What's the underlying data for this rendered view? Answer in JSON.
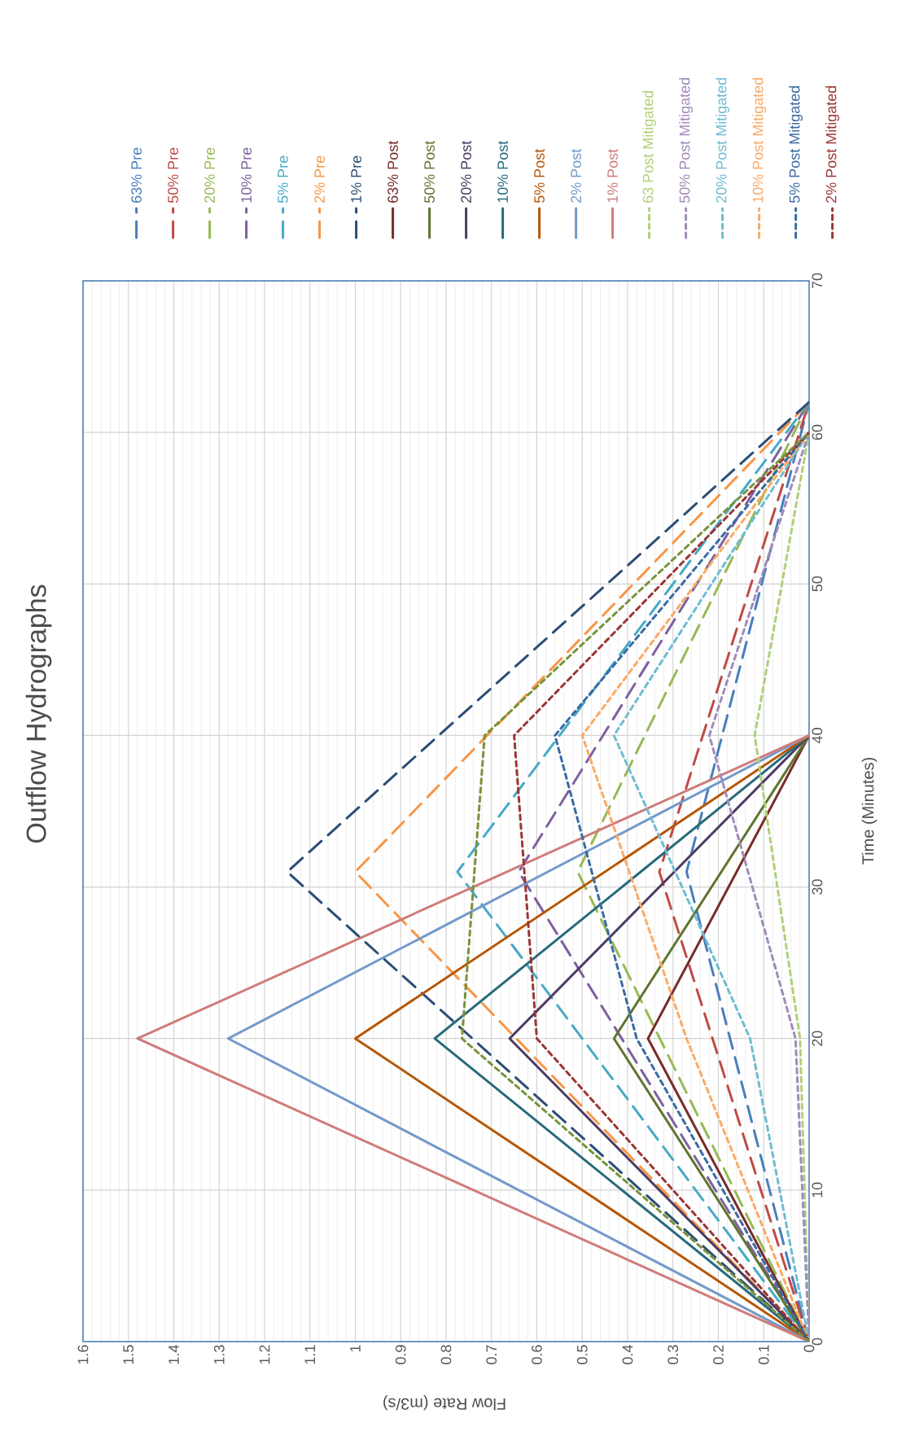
{
  "chart_data": {
    "type": "line",
    "title": "Outflow Hydrographs",
    "xlabel": "Flow Rate (m3/s)",
    "ylabel": "Time (Minutes)",
    "xlim": [
      1.6,
      0
    ],
    "xticks": [
      0,
      0.1,
      0.2,
      0.3,
      0.4,
      0.5,
      0.6,
      0.7,
      0.8,
      0.9,
      1,
      1.1,
      1.2,
      1.3,
      1.4,
      1.5,
      1.6
    ],
    "ylim": [
      0,
      70
    ],
    "yticks": [
      0,
      10,
      20,
      30,
      40,
      50,
      60,
      70
    ],
    "grid": true,
    "legend": "top",
    "marker": "none",
    "series": [
      {
        "name": "63% Pre",
        "color": "#4a7ebb",
        "line_style": "dashed",
        "x": [
          0,
          0.27,
          0
        ],
        "values": [
          0,
          31,
          62
        ]
      },
      {
        "name": "50% Pre",
        "color": "#be4b48",
        "line_style": "dashed",
        "x": [
          0,
          0.33,
          0
        ],
        "values": [
          0,
          31,
          62
        ]
      },
      {
        "name": "20% Pre",
        "color": "#98b954",
        "line_style": "dashed",
        "x": [
          0,
          0.51,
          0
        ],
        "values": [
          0,
          31,
          62
        ]
      },
      {
        "name": "10% Pre",
        "color": "#7d60a0",
        "line_style": "dashed",
        "x": [
          0,
          0.64,
          0
        ],
        "values": [
          0,
          31,
          62
        ]
      },
      {
        "name": "5% Pre",
        "color": "#46aac5",
        "line_style": "dashed",
        "x": [
          0,
          0.775,
          0
        ],
        "values": [
          0,
          31,
          62
        ]
      },
      {
        "name": "2% Pre",
        "color": "#f79646",
        "line_style": "dashed",
        "x": [
          0,
          1.0,
          0
        ],
        "values": [
          0,
          31,
          62
        ]
      },
      {
        "name": "1% Pre",
        "color": "#2c4d75",
        "line_style": "dashed",
        "x": [
          0,
          1.15,
          0
        ],
        "values": [
          0,
          31,
          62
        ]
      },
      {
        "name": "63% Post",
        "color": "#772c2a",
        "line_style": "solid",
        "x": [
          0,
          0.355,
          0
        ],
        "values": [
          0,
          20,
          40
        ]
      },
      {
        "name": "50% Post",
        "color": "#5f7530",
        "line_style": "solid",
        "x": [
          0,
          0.43,
          0
        ],
        "values": [
          0,
          20,
          40
        ]
      },
      {
        "name": "20% Post",
        "color": "#4d3b62",
        "line_style": "solid",
        "x": [
          0,
          0.66,
          0
        ],
        "values": [
          0,
          20,
          40
        ]
      },
      {
        "name": "10% Post",
        "color": "#276a7c",
        "line_style": "solid",
        "x": [
          0,
          0.825,
          0
        ],
        "values": [
          0,
          20,
          40
        ]
      },
      {
        "name": "5% Post",
        "color": "#b65708",
        "line_style": "solid",
        "x": [
          0,
          1.0,
          0
        ],
        "values": [
          0,
          20,
          40
        ]
      },
      {
        "name": "2% Post",
        "color": "#729aca",
        "line_style": "solid",
        "x": [
          0,
          1.28,
          0
        ],
        "values": [
          0,
          20,
          40
        ]
      },
      {
        "name": "1% Post",
        "color": "#d07b7b",
        "line_style": "solid",
        "x": [
          0,
          1.48,
          0
        ],
        "values": [
          0,
          20,
          40
        ]
      },
      {
        "name": "63 Post Mitigated",
        "color": "#afd07a",
        "line_style": "dotted",
        "x": [
          0,
          0.02,
          0.12,
          0
        ],
        "values": [
          0,
          20,
          40,
          60
        ]
      },
      {
        "name": "50% Post Mitigated",
        "color": "#a18bba",
        "line_style": "dotted",
        "x": [
          0,
          0.03,
          0.22,
          0
        ],
        "values": [
          0,
          20,
          40,
          60
        ]
      },
      {
        "name": "20% Post Mitigated",
        "color": "#6ebcd2",
        "line_style": "dotted",
        "x": [
          0,
          0.13,
          0.43,
          0
        ],
        "values": [
          0,
          20,
          40,
          60
        ]
      },
      {
        "name": "10% Post Mitigated",
        "color": "#f9aa66",
        "line_style": "dotted",
        "x": [
          0,
          0.27,
          0.5,
          0
        ],
        "values": [
          0,
          20,
          40,
          60
        ]
      },
      {
        "name": "5% Post Mitigated",
        "color": "#3a6ba3",
        "line_style": "dotted",
        "x": [
          0,
          0.38,
          0.56,
          0
        ],
        "values": [
          0,
          20,
          40,
          60
        ]
      },
      {
        "name": "2% Post Mitigated",
        "color": "#9b3735",
        "line_style": "dotted",
        "x": [
          0,
          0.6,
          0.65,
          0
        ],
        "values": [
          0,
          20,
          40,
          60
        ]
      },
      {
        "color": "#77933c",
        "line_style": "dotted",
        "x": [
          0,
          0.765,
          0.715,
          0
        ],
        "values": [
          0,
          20,
          40,
          60
        ]
      }
    ]
  }
}
